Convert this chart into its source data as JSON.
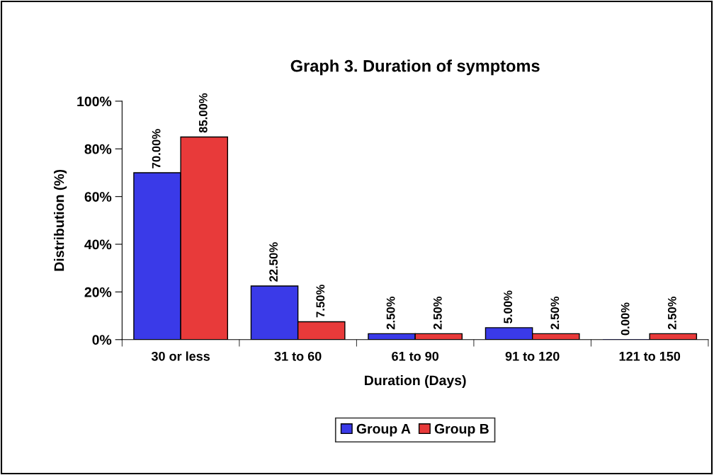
{
  "chart_data": {
    "type": "bar",
    "title": "Graph 3. Duration of symptoms",
    "xlabel": "Duration (Days)",
    "ylabel": "Distribution (%)",
    "categories": [
      "30 or less",
      "31 to 60",
      "61 to 90",
      "91 to 120",
      "121 to 150"
    ],
    "series": [
      {
        "name": "Group A",
        "color": "#3a3ae8",
        "values": [
          70,
          22.5,
          2.5,
          5,
          0
        ],
        "value_labels": [
          "70.00%",
          "22.50%",
          "2.50%",
          "5.00%",
          "0.00%"
        ]
      },
      {
        "name": "Group B",
        "color": "#e83a3a",
        "values": [
          85,
          7.5,
          2.5,
          2.5,
          2.5
        ],
        "value_labels": [
          "85.00%",
          "7.50%",
          "2.50%",
          "2.50%",
          "2.50%"
        ]
      }
    ],
    "ylim": [
      0,
      100
    ],
    "yticks": [
      {
        "value": 0,
        "label": "0%"
      },
      {
        "value": 20,
        "label": "20%"
      },
      {
        "value": 40,
        "label": "40%"
      },
      {
        "value": 60,
        "label": "60%"
      },
      {
        "value": 80,
        "label": "80%"
      },
      {
        "value": 100,
        "label": "100%"
      }
    ],
    "grid": false,
    "legend": "bottom"
  }
}
